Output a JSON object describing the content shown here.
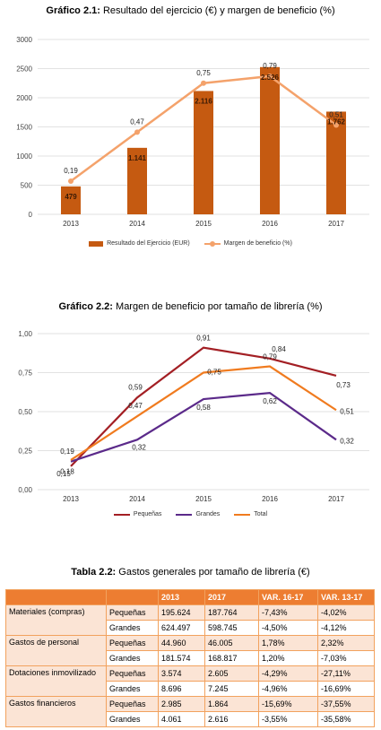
{
  "chart_data": [
    {
      "type": "bar+line",
      "title_prefix": "Gráfico 2.1:",
      "title": "Resultado del ejercicio (€) y margen de beneficio (%)",
      "categories": [
        "2013",
        "2014",
        "2015",
        "2016",
        "2017"
      ],
      "ylim": [
        0,
        3000
      ],
      "yticks": [
        "0",
        "500",
        "1000",
        "1500",
        "2000",
        "2500",
        "3000"
      ],
      "series": [
        {
          "name": "Resultado del Ejercicio (EUR)",
          "type": "bar",
          "color": "#c55a11",
          "values": [
            479,
            1141,
            2116,
            2526,
            1762
          ],
          "labels": [
            "479",
            "1.141",
            "2.116",
            "2.526",
            "1.762"
          ]
        },
        {
          "name": "Margen de beneficio (%)",
          "type": "line",
          "axis": "secondary",
          "color": "#f4a26b",
          "values": [
            0.19,
            0.47,
            0.75,
            0.79,
            0.51
          ],
          "labels": [
            "0,19",
            "0,47",
            "0,75",
            "0,79",
            "0,51"
          ]
        }
      ],
      "grid": true,
      "legend": "bottom"
    },
    {
      "type": "line",
      "title_prefix": "Gráfico 2.2:",
      "title": "Margen de beneficio por tamaño de librería (%)",
      "categories": [
        "2013",
        "2014",
        "2015",
        "2016",
        "2017"
      ],
      "ylim": [
        0,
        1
      ],
      "yticks": [
        "0,00",
        "0,25",
        "0,50",
        "0,75",
        "1,00"
      ],
      "series": [
        {
          "name": "Pequeñas",
          "color": "#a31f24",
          "values": [
            0.15,
            0.59,
            0.91,
            0.84,
            0.73
          ],
          "labels": [
            "0,15",
            "0,59",
            "0,91",
            "0,84",
            "0,73"
          ]
        },
        {
          "name": "Grandes",
          "color": "#5b2a8a",
          "values": [
            0.18,
            0.32,
            0.58,
            0.62,
            0.32
          ],
          "labels": [
            "0,18",
            "0,32",
            "0,58",
            "0,62",
            "0,32"
          ]
        },
        {
          "name": "Total",
          "color": "#f07b1f",
          "values": [
            0.19,
            0.47,
            0.75,
            0.79,
            0.51
          ],
          "labels": [
            "0,19",
            "0,47",
            "0,75",
            "0,79",
            "0,51"
          ]
        }
      ],
      "grid": true,
      "legend": "bottom"
    },
    {
      "type": "table",
      "title_prefix": "Tabla 2.2:",
      "title": "Gastos generales por tamaño de librería (€)",
      "columns": [
        "",
        "",
        "2013",
        "2017",
        "VAR. 16-17",
        "VAR. 13-17"
      ],
      "groups": [
        {
          "category": "Materiales (compras)",
          "rows": [
            [
              "Pequeñas",
              "195.624",
              "187.764",
              "-7,43%",
              "-4,02%"
            ],
            [
              "Grandes",
              "624.497",
              "598.745",
              "-4,50%",
              "-4,12%"
            ]
          ]
        },
        {
          "category": "Gastos de personal",
          "rows": [
            [
              "Pequeñas",
              "44.960",
              "46.005",
              "1,78%",
              "2,32%"
            ],
            [
              "Grandes",
              "181.574",
              "168.817",
              "1,20%",
              "-7,03%"
            ]
          ]
        },
        {
          "category": "Dotaciones inmovilizado",
          "rows": [
            [
              "Pequeñas",
              "3.574",
              "2.605",
              "-4,29%",
              "-27,11%"
            ],
            [
              "Grandes",
              "8.696",
              "7.245",
              "-4,96%",
              "-16,69%"
            ]
          ]
        },
        {
          "category": "Gastos financieros",
          "rows": [
            [
              "Pequeñas",
              "2.985",
              "1.864",
              "-15,69%",
              "-37,55%"
            ],
            [
              "Grandes",
              "4.061",
              "2.616",
              "-3,55%",
              "-35,58%"
            ]
          ]
        }
      ]
    }
  ]
}
